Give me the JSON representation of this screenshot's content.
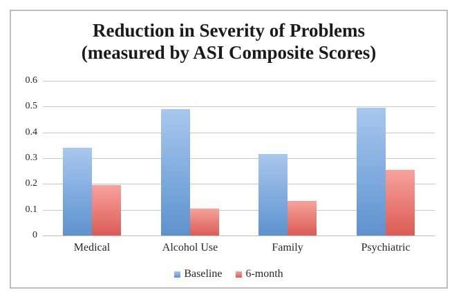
{
  "window": {
    "background": "#ffffff",
    "frame_border_color": "#bdbdbd"
  },
  "chart_data": {
    "type": "bar",
    "title": "Reduction in Severity of Problems (measured by ASI Composite Scores)",
    "title_lines": [
      "Reduction in Severity of Problems",
      "(measured by ASI Composite Scores)"
    ],
    "categories": [
      "Medical",
      "Alcohol Use",
      "Family",
      "Psychiatric"
    ],
    "series": [
      {
        "name": "Baseline",
        "values": [
          0.34,
          0.49,
          0.315,
          0.495
        ],
        "color_top": "#a8c7ee",
        "color_bottom": "#5e92cf",
        "legend_color": "#7ba6dd"
      },
      {
        "name": "6-month",
        "values": [
          0.195,
          0.105,
          0.135,
          0.255
        ],
        "color_top": "#f7a29c",
        "color_bottom": "#db5b55",
        "legend_color": "#e3736d"
      }
    ],
    "xlabel": "",
    "ylabel": "",
    "ylim": [
      0,
      0.6
    ],
    "ytick_step": 0.1,
    "yticks": [
      "0",
      "0.1",
      "0.2",
      "0.3",
      "0.4",
      "0.5",
      "0.6"
    ],
    "grid": true,
    "gridline_color": "#c7c7c7",
    "axis_line_color": "#c0c0c0",
    "legend_position": "bottom",
    "text_color": "#262626"
  }
}
